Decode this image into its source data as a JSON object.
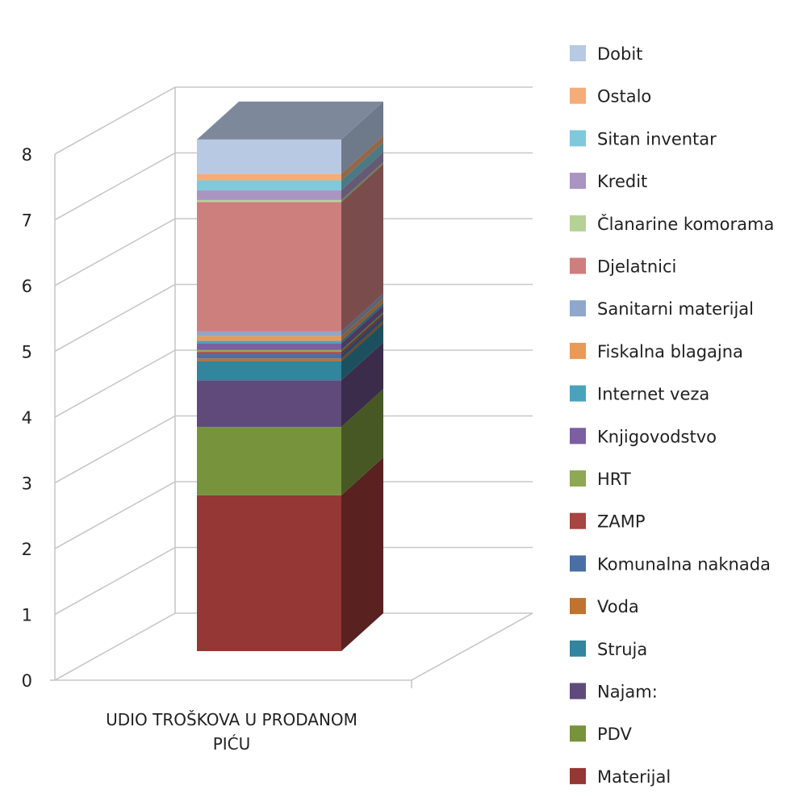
{
  "chart_data": {
    "type": "bar",
    "stacked": true,
    "three_d": true,
    "categories": [
      "UDIO TROŠKOVA U PRODANOM PIĆU"
    ],
    "category_label_lines": [
      "UDIO TROŠKOVA U PRODANOM",
      "PIĆU"
    ],
    "ylim": [
      0,
      8
    ],
    "yticks": [
      0,
      1,
      2,
      3,
      4,
      5,
      6,
      7,
      8
    ],
    "grid": true,
    "legend_position": "right",
    "series": [
      {
        "name": "Materijal",
        "values": [
          2.37
        ],
        "color": "#953735"
      },
      {
        "name": "PDV",
        "values": [
          1.04
        ],
        "color": "#77933c"
      },
      {
        "name": "Najam:",
        "values": [
          0.71
        ],
        "color": "#604a7b"
      },
      {
        "name": "Struja",
        "values": [
          0.29
        ],
        "color": "#31859c"
      },
      {
        "name": "Voda",
        "values": [
          0.04
        ],
        "color": "#c0722f"
      },
      {
        "name": "Komunalna naknada",
        "values": [
          0.07
        ],
        "color": "#4a6fa5"
      },
      {
        "name": "ZAMP",
        "values": [
          0.03
        ],
        "color": "#a84442"
      },
      {
        "name": "HRT",
        "values": [
          0.03
        ],
        "color": "#8ea854"
      },
      {
        "name": "Knjigovodstvo",
        "values": [
          0.1
        ],
        "color": "#7b5fa0"
      },
      {
        "name": "Internet veza",
        "values": [
          0.04
        ],
        "color": "#4aa3bd"
      },
      {
        "name": "Fiskalna blagajna",
        "values": [
          0.07
        ],
        "color": "#e89a56"
      },
      {
        "name": "Sanitarni materijal",
        "values": [
          0.07
        ],
        "color": "#8fa7cc"
      },
      {
        "name": "Djelatnici",
        "values": [
          1.97
        ],
        "color": "#cd7f7e"
      },
      {
        "name": "Članarine komorama",
        "values": [
          0.03
        ],
        "color": "#b6d196"
      },
      {
        "name": "Kredit",
        "values": [
          0.15
        ],
        "color": "#a994c2"
      },
      {
        "name": "Sitan inventar",
        "values": [
          0.15
        ],
        "color": "#7fc9da"
      },
      {
        "name": "Ostalo",
        "values": [
          0.1
        ],
        "color": "#f5ac78"
      },
      {
        "name": "Dobit",
        "values": [
          0.52
        ],
        "color": "#b8c9e4"
      }
    ]
  }
}
